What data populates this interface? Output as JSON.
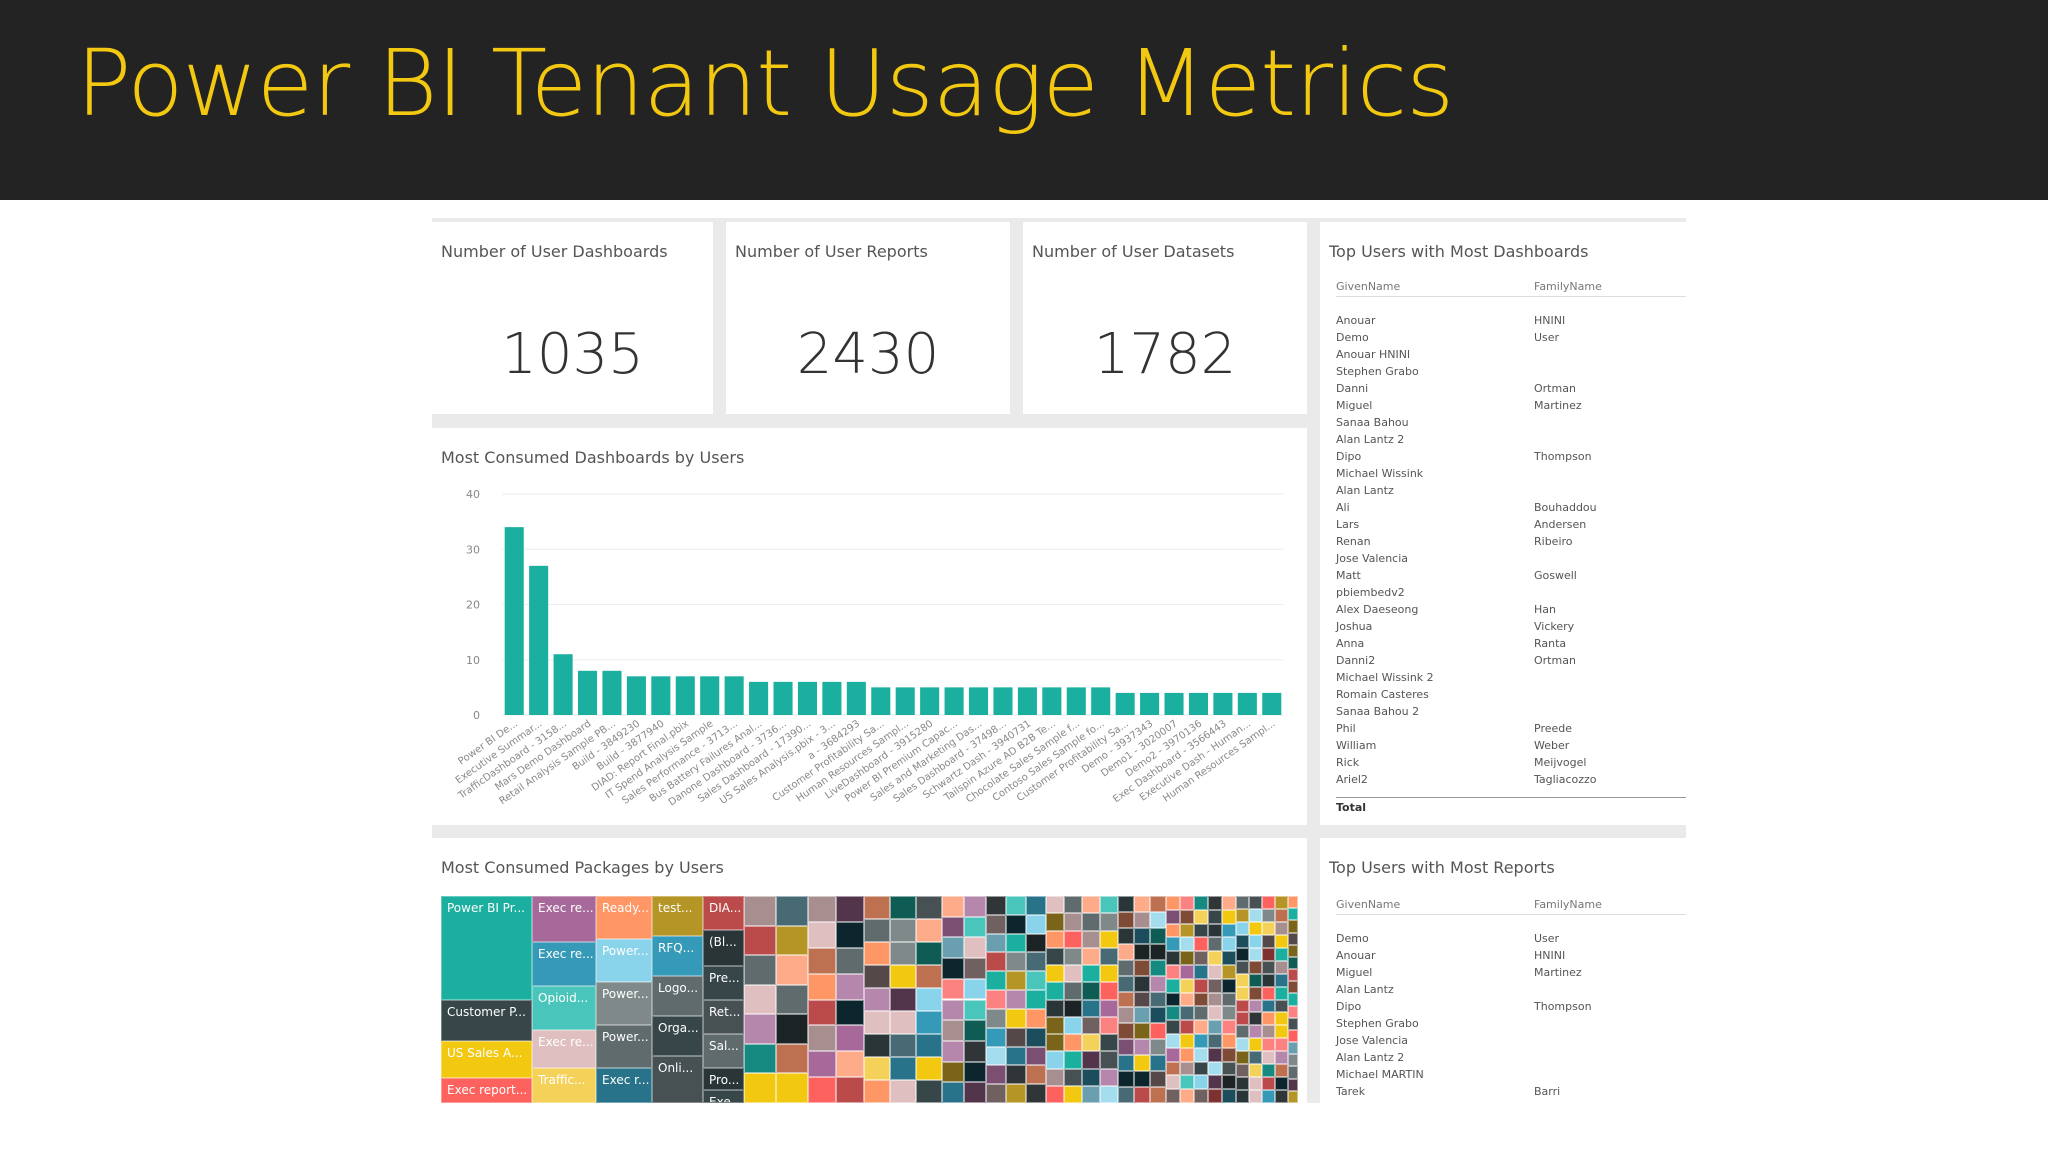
{
  "page": {
    "title": "Power BI Tenant Usage Metrics"
  },
  "colors": {
    "banner": "#232323",
    "title": "#f2c811",
    "bar": "#1aaf9e"
  },
  "kpis": [
    {
      "title": "Number of User Dashboards",
      "value": "1035"
    },
    {
      "title": "Number of User Reports",
      "value": "2430"
    },
    {
      "title": "Number of User Datasets",
      "value": "1782"
    }
  ],
  "dashboards_chart": {
    "title": "Most Consumed Dashboards by Users",
    "chart_data": {
      "type": "bar",
      "categories": [
        "Power BI De...",
        "Executive Summar...",
        "TrafficDashboard - 3158...",
        "Mars Demo Dashboard",
        "Retail Analysis Sample PB...",
        "Build - 3849230",
        "Build - 3877940",
        "DIAD: Report Final.pbix",
        "IT Spend Analysis Sample",
        "Sales Performance - 3713...",
        "Bus Battery Failures Anal...",
        "Danone Dashboard - 3736...",
        "Sales Dashboard - 17390...",
        "US Sales Analysis.pbix - 3...",
        "a - 3684293",
        "Customer Profitability Sa...",
        "Human Resources Sampl...",
        "LiveDashboard - 3915280",
        "Power BI Premium Capac...",
        "Sales and Marketing Das...",
        "Sales Dashboard - 37498...",
        "Schwartz Dash - 3940731",
        "Tailspin Azure AD B2B Te...",
        "Chocolate Sales Sample f...",
        "Contoso Sales Sample fo...",
        "Customer Profitability Sa...",
        "Demo - 3937343",
        "Demo1 - 3020007",
        "Demo2 - 3970136",
        "Exec Dashboard - 3566443",
        "Executive Dash - Human...",
        "Human Resources Sampl..."
      ],
      "values": [
        34,
        27,
        11,
        8,
        8,
        7,
        7,
        7,
        7,
        7,
        6,
        6,
        6,
        6,
        6,
        5,
        5,
        5,
        5,
        5,
        5,
        5,
        5,
        5,
        5,
        4,
        4,
        4,
        4,
        4,
        4,
        4
      ],
      "yticks": [
        "0",
        "10",
        "20",
        "30",
        "40"
      ],
      "ylim": [
        0,
        40
      ]
    }
  },
  "packages_chart": {
    "title": "Most Consumed Packages by Users",
    "labels": [
      "Power BI Pr...",
      "Customer P...",
      "US Sales A...",
      "Exec report...",
      "Exec re...",
      "Exec re...",
      "Opioid...",
      "Exec re...",
      "Traffic...",
      "Ready...",
      "Power...",
      "Power...",
      "Power...",
      "Exec r...",
      "test...",
      "RFQ...",
      "Logo...",
      "Orga...",
      "Onli...",
      "DIA...",
      "(Bl...",
      "Pre...",
      "Ret...",
      "Sal...",
      "Pro...",
      "Exe..."
    ],
    "palette": [
      "#1aaf9e",
      "#374649",
      "#fd625e",
      "#f2c811",
      "#5f6b6d",
      "#8ad4eb",
      "#fe9666",
      "#a66999",
      "#3599b8",
      "#dfbfbf",
      "#4ac5bb",
      "#5f6b6d",
      "#fb8281",
      "#f4d25a",
      "#7f898a",
      "#a4ddee",
      "#fdab89",
      "#b687ac",
      "#28738a",
      "#a78f8f",
      "#168980",
      "#293537",
      "#bb4a4a",
      "#b59525",
      "#475052",
      "#6a9fb0",
      "#bd7150",
      "#7b4f71",
      "#1b4d5c",
      "#706060",
      "#0f5c55",
      "#1c2325",
      "#7d3231",
      "#796419",
      "#303637",
      "#476a75",
      "#7e4b36",
      "#52354b",
      "#0d262e",
      "#544848"
    ]
  },
  "top_dashboards": {
    "title": "Top Users with Most Dashboards",
    "headers": [
      "GivenName",
      "FamilyName"
    ],
    "rows": [
      [
        "Anouar",
        "HNINI"
      ],
      [
        "Demo",
        "User"
      ],
      [
        "Anouar HNINI",
        ""
      ],
      [
        "Stephen Grabo",
        ""
      ],
      [
        "Danni",
        "Ortman"
      ],
      [
        "Miguel",
        "Martinez"
      ],
      [
        "Sanaa Bahou",
        ""
      ],
      [
        "Alan Lantz 2",
        ""
      ],
      [
        "Dipo",
        "Thompson"
      ],
      [
        "Michael Wissink",
        ""
      ],
      [
        "Alan Lantz",
        ""
      ],
      [
        "Ali",
        "Bouhaddou"
      ],
      [
        "Lars",
        "Andersen"
      ],
      [
        "Renan",
        "Ribeiro"
      ],
      [
        "Jose Valencia",
        ""
      ],
      [
        "Matt",
        "Goswell"
      ],
      [
        "pbiembedv2",
        ""
      ],
      [
        "Alex Daeseong",
        "Han"
      ],
      [
        "Joshua",
        "Vickery"
      ],
      [
        "Anna",
        "Ranta"
      ],
      [
        "Danni2",
        "Ortman"
      ],
      [
        "Michael Wissink 2",
        ""
      ],
      [
        "Romain Casteres",
        ""
      ],
      [
        "Sanaa Bahou 2",
        ""
      ],
      [
        "Phil",
        "Preede"
      ],
      [
        "William",
        "Weber"
      ],
      [
        "Rick",
        "Meijvogel"
      ],
      [
        "Ariel2",
        "Tagliacozzo"
      ]
    ],
    "total_label": "Total"
  },
  "top_reports": {
    "title": "Top Users with Most Reports",
    "headers": [
      "GivenName",
      "FamilyName"
    ],
    "rows": [
      [
        "Demo",
        "User"
      ],
      [
        "Anouar",
        "HNINI"
      ],
      [
        "Miguel",
        "Martinez"
      ],
      [
        "Alan Lantz",
        ""
      ],
      [
        "Dipo",
        "Thompson"
      ],
      [
        "Stephen Grabo",
        ""
      ],
      [
        "Jose Valencia",
        ""
      ],
      [
        "Alan Lantz 2",
        ""
      ],
      [
        "Michael MARTIN",
        ""
      ],
      [
        "Tarek",
        "Barri"
      ]
    ]
  }
}
